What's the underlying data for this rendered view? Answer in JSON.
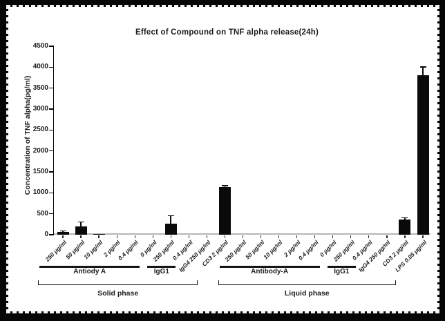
{
  "chart_data": {
    "type": "bar",
    "title": "Effect of Compound on TNF alpha release(24h)",
    "ylabel": "Concentration of TNF alpha(pg/ml)",
    "xlabel": "",
    "ylim": [
      0,
      4500
    ],
    "yticks": [
      0,
      500,
      1000,
      1500,
      2000,
      2500,
      3000,
      3500,
      4000,
      4500
    ],
    "grid": false,
    "legend": "none",
    "bar_color": "#0a0a0a",
    "axis_color": "#000000",
    "baseline_color": "#b5b5b5",
    "categories": [
      "250 μg/ml",
      "50 μg/ml",
      "10 μg/ml",
      "2 μg/ml",
      "0.4 μg/ml",
      "0 μg/ml",
      "250 μg/ml",
      "0.4 μg/ml",
      "IgG4 250 μg/ml",
      "CD3 2 μg/ml",
      "250 μg/ml",
      "50 μg/ml",
      "10 μg/ml",
      "2 μg/ml",
      "0.4 μg/ml",
      "0 μg/ml",
      "250 μg/ml",
      "0.4 μg/ml",
      "IgG4 250 μg/ml",
      "CD3 2 μg/ml",
      "LPS 0.05 μg/ml"
    ],
    "values": [
      60,
      190,
      15,
      0,
      0,
      0,
      270,
      0,
      0,
      1140,
      0,
      0,
      0,
      0,
      0,
      0,
      0,
      0,
      0,
      355,
      3800
    ],
    "errors_plus": [
      45,
      130,
      0,
      0,
      0,
      0,
      200,
      0,
      0,
      40,
      0,
      0,
      0,
      0,
      0,
      0,
      0,
      0,
      0,
      65,
      220
    ],
    "groups": [
      {
        "label": "Antiody A",
        "start": 0,
        "end": 5
      },
      {
        "label": "IgG1",
        "start": 6,
        "end": 7
      },
      {
        "label": "Antibody-A",
        "start": 10,
        "end": 15
      },
      {
        "label": "IgG1",
        "start": 16,
        "end": 17
      }
    ],
    "phases": [
      {
        "label": "Solid phase",
        "start": 0,
        "end": 9
      },
      {
        "label": "Liquid phase",
        "start": 10,
        "end": 20
      }
    ]
  }
}
